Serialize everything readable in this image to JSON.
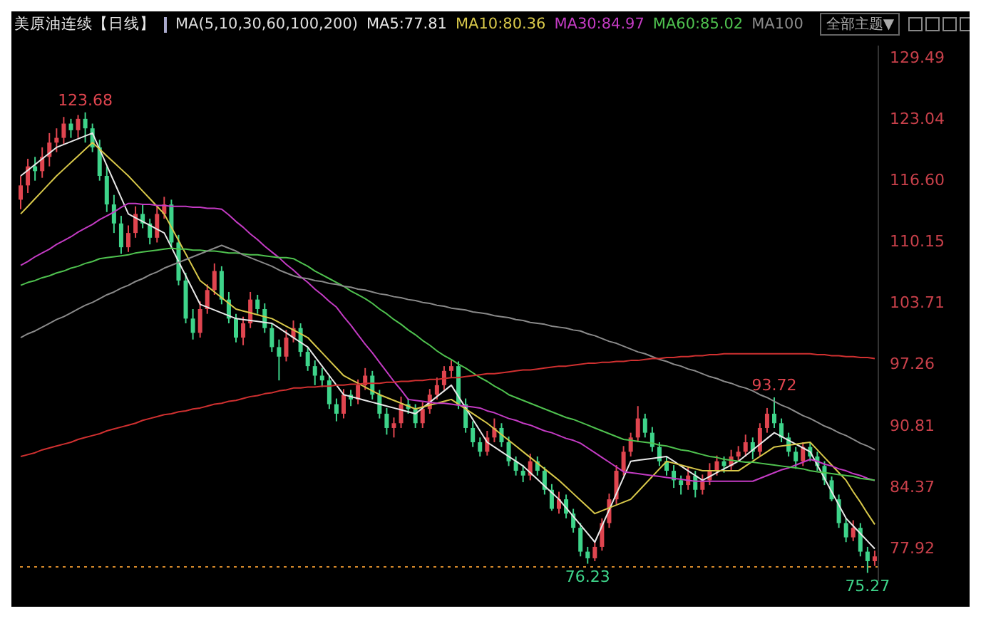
{
  "chart_data": {
    "type": "candlestick",
    "title": "美原油连续【日线】",
    "categories": [
      null,
      null,
      null,
      null,
      null,
      null,
      null,
      null,
      null,
      null,
      null,
      null,
      null,
      null,
      null,
      null,
      null,
      null,
      null,
      null,
      null,
      null,
      null,
      null,
      null,
      null,
      null,
      null,
      null,
      null,
      null,
      null,
      null,
      null,
      null,
      null,
      null,
      null,
      null,
      null,
      null,
      null,
      null,
      null,
      null,
      null,
      null,
      null,
      null,
      null,
      null,
      null,
      null,
      null,
      null,
      null,
      null,
      null,
      null,
      null,
      null,
      null,
      null,
      null,
      null,
      null,
      null,
      null,
      null,
      null,
      null,
      null,
      null,
      null,
      null,
      null,
      null,
      null,
      null,
      null,
      null,
      null,
      null,
      null,
      null,
      null,
      null,
      null,
      null,
      null,
      null,
      null,
      null,
      null,
      null,
      null,
      null,
      null,
      null,
      null,
      null,
      null,
      null,
      null,
      null,
      null,
      null,
      null,
      null,
      null,
      null,
      null,
      null,
      null,
      null,
      null,
      null,
      null,
      null,
      null
    ],
    "ohlc": [
      [
        114.5,
        117,
        113.5,
        116
      ],
      [
        116,
        118.8,
        115.2,
        118
      ],
      [
        118,
        119,
        116.5,
        117.5
      ],
      [
        117.5,
        120,
        116.8,
        119
      ],
      [
        119,
        121.5,
        118,
        120.5
      ],
      [
        120.5,
        122,
        119.5,
        121
      ],
      [
        121,
        123.2,
        120.3,
        122.5
      ],
      [
        122.5,
        123,
        121,
        121.8
      ],
      [
        121.8,
        123.4,
        121,
        123
      ],
      [
        123,
        123.68,
        120.5,
        122
      ],
      [
        122,
        122.5,
        119.5,
        120
      ],
      [
        120,
        120.8,
        116.5,
        117
      ],
      [
        117,
        118,
        113.2,
        114
      ],
      [
        114,
        115,
        111,
        112
      ],
      [
        112,
        112.8,
        108.8,
        109.5
      ],
      [
        109.5,
        111.8,
        109,
        111
      ],
      [
        111,
        113.8,
        110.5,
        113
      ],
      [
        113,
        114,
        111.5,
        112
      ],
      [
        112,
        112.5,
        109.8,
        110.5
      ],
      [
        110.5,
        113.8,
        110,
        113
      ],
      [
        113,
        114.8,
        112.5,
        114
      ],
      [
        114,
        114.5,
        109.5,
        110
      ],
      [
        110,
        110.8,
        105.5,
        106
      ],
      [
        106,
        106.8,
        101.5,
        102
      ],
      [
        102,
        103,
        99.8,
        100.5
      ],
      [
        100.5,
        103.8,
        100,
        103
      ],
      [
        103,
        105.6,
        102.5,
        105
      ],
      [
        105,
        107.8,
        104.5,
        107
      ],
      [
        107,
        107.5,
        103.5,
        104
      ],
      [
        104,
        104.8,
        101.5,
        102
      ],
      [
        102,
        102.5,
        99.5,
        100
      ],
      [
        100,
        102.2,
        99.2,
        101.5
      ],
      [
        101.5,
        104.8,
        101,
        104
      ],
      [
        104,
        104.5,
        102.5,
        103
      ],
      [
        103,
        103.6,
        100.5,
        101
      ],
      [
        101,
        101.5,
        98.5,
        99
      ],
      [
        99,
        99.8,
        95.5,
        98
      ],
      [
        98,
        100.8,
        97.5,
        100
      ],
      [
        100,
        101.8,
        99.5,
        101
      ],
      [
        101,
        101.5,
        98,
        98.5
      ],
      [
        98.5,
        99,
        96.5,
        97
      ],
      [
        97,
        97.6,
        95,
        96
      ],
      [
        96,
        96.8,
        94.8,
        95.5
      ],
      [
        95.5,
        96,
        92.5,
        93
      ],
      [
        93,
        93.6,
        91.2,
        92
      ],
      [
        92,
        94.6,
        91.5,
        94
      ],
      [
        94,
        94.5,
        92.8,
        93.5
      ],
      [
        93.5,
        95.6,
        93,
        95
      ],
      [
        95,
        96.8,
        94.5,
        96
      ],
      [
        96,
        96.5,
        93.5,
        94
      ],
      [
        94,
        94.5,
        91.5,
        92
      ],
      [
        92,
        92.6,
        89.8,
        90.5
      ],
      [
        90.5,
        91.6,
        89.5,
        91
      ],
      [
        91,
        93.8,
        90.5,
        93
      ],
      [
        93,
        93.6,
        92,
        92.5
      ],
      [
        92.5,
        93,
        90.5,
        91
      ],
      [
        91,
        93.2,
        90.5,
        92.5
      ],
      [
        92.5,
        94.6,
        92,
        94
      ],
      [
        94,
        95.8,
        93.5,
        95
      ],
      [
        95,
        97,
        94.5,
        96.5
      ],
      [
        96.5,
        97.6,
        95.8,
        97
      ],
      [
        97,
        97.5,
        92.5,
        93
      ],
      [
        93,
        93.6,
        90,
        90.5
      ],
      [
        90.5,
        91.2,
        88.5,
        89
      ],
      [
        89,
        89.5,
        87.5,
        88
      ],
      [
        88,
        90.2,
        87.6,
        89.5
      ],
      [
        89.5,
        91.5,
        89,
        90.5
      ],
      [
        90.5,
        91,
        88.5,
        89
      ],
      [
        89,
        89.6,
        86.5,
        87
      ],
      [
        87,
        87.5,
        85.5,
        86
      ],
      [
        86,
        86.6,
        84.8,
        85.5
      ],
      [
        85.5,
        87.8,
        85,
        87
      ],
      [
        87,
        87.5,
        85.5,
        86
      ],
      [
        86,
        86.4,
        83.5,
        84
      ],
      [
        84,
        84.6,
        81.8,
        82
      ],
      [
        82,
        83.8,
        81.5,
        83
      ],
      [
        83,
        83.5,
        81,
        81.5
      ],
      [
        81.5,
        82,
        79.5,
        80
      ],
      [
        80,
        80.5,
        77,
        77.5
      ],
      [
        77.5,
        78,
        76.23,
        76.8
      ],
      [
        76.8,
        78.6,
        76.5,
        78
      ],
      [
        78,
        81,
        77.6,
        80.5
      ],
      [
        80.5,
        83.6,
        80,
        83
      ],
      [
        83,
        86.6,
        82.5,
        86
      ],
      [
        86,
        88.6,
        85.5,
        88
      ],
      [
        88,
        90,
        87.5,
        89.5
      ],
      [
        89.5,
        92.8,
        89,
        91.5
      ],
      [
        91.5,
        92,
        89.5,
        90
      ],
      [
        90,
        90.6,
        88,
        88.5
      ],
      [
        88.5,
        89,
        86.5,
        87
      ],
      [
        87,
        87.5,
        85.5,
        86
      ],
      [
        86,
        86.6,
        84.2,
        85
      ],
      [
        85,
        85.5,
        83.5,
        84.5
      ],
      [
        84.5,
        86.4,
        84,
        85.5
      ],
      [
        85.5,
        86,
        83.2,
        84
      ],
      [
        84,
        85.6,
        83.5,
        85
      ],
      [
        85,
        86.8,
        84.5,
        86
      ],
      [
        86,
        87.6,
        85.5,
        87
      ],
      [
        87,
        87.5,
        85.8,
        86.5
      ],
      [
        86.5,
        88.2,
        86,
        87.5
      ],
      [
        87.5,
        88.6,
        87,
        88
      ],
      [
        88,
        89.8,
        87.5,
        89
      ],
      [
        89,
        89.5,
        87.2,
        88
      ],
      [
        88,
        91,
        87.5,
        90.5
      ],
      [
        90.5,
        92.6,
        90,
        92
      ],
      [
        92,
        93.72,
        90.5,
        91
      ],
      [
        91,
        91.5,
        89,
        89.5
      ],
      [
        89.5,
        90,
        87.5,
        88
      ],
      [
        88,
        88.5,
        86.2,
        87
      ],
      [
        87,
        89,
        86.5,
        88.5
      ],
      [
        88.5,
        89,
        87,
        87.5
      ],
      [
        87.5,
        88,
        86,
        86.5
      ],
      [
        86.5,
        87,
        84.5,
        85
      ],
      [
        85,
        85.4,
        82.8,
        83
      ],
      [
        83,
        83.5,
        80,
        80.5
      ],
      [
        80.5,
        81,
        78.5,
        79
      ],
      [
        79,
        80.8,
        78.6,
        80
      ],
      [
        80,
        80.5,
        77,
        77.5
      ],
      [
        77.5,
        78,
        75.27,
        76.5
      ],
      [
        76.5,
        77.6,
        76,
        77
      ]
    ],
    "series": [
      {
        "type": "line",
        "name": "MA5:77.81",
        "color": "#e8e8e8",
        "values": [
          117,
          117.6,
          118.2,
          118.8,
          119.4,
          120,
          120.3,
          120.6,
          120.9,
          121.2,
          121.5,
          119.8,
          118.1,
          116.4,
          114.7,
          113,
          112.6,
          112.2,
          111.8,
          111.4,
          111,
          109.5,
          108,
          106.5,
          105,
          103.5,
          103.2,
          102.9,
          102.6,
          102.3,
          102,
          101.9,
          101.8,
          101.7,
          101.6,
          101.5,
          101,
          100.5,
          100,
          99.5,
          99,
          98,
          97,
          96,
          95,
          94,
          93.8,
          93.6,
          93.4,
          93.2,
          93,
          92.8,
          92.6,
          92.4,
          92.2,
          92,
          92.6,
          93.2,
          93.8,
          94.4,
          95,
          93.8,
          92.6,
          91.4,
          90.2,
          89,
          88.5,
          88,
          87.5,
          87,
          86.5,
          85.8,
          85.1,
          84.4,
          83.7,
          83,
          82.1,
          81.2,
          80.3,
          79.4,
          78.5,
          80.2,
          81.9,
          83.6,
          85.3,
          87,
          87.1,
          87.2,
          87.3,
          87.4,
          87.5,
          87,
          86.5,
          86,
          85.5,
          85,
          85.4,
          85.8,
          86.2,
          86.6,
          87,
          87.6,
          88.2,
          88.8,
          89.4,
          90,
          89.6,
          89.2,
          88.8,
          88.4,
          88,
          86.6,
          85.2,
          83.8,
          82.4,
          81,
          80.2,
          79.4,
          78.6,
          77.81
        ]
      },
      {
        "type": "line",
        "name": "MA10:80.36",
        "color": "#d8c84a",
        "values": [
          113,
          113.8,
          114.6,
          115.4,
          116.2,
          117,
          117.7,
          118.4,
          119.1,
          119.8,
          120.5,
          119.8,
          119.1,
          118.4,
          117.7,
          117,
          116.2,
          115.4,
          114.6,
          113.8,
          113,
          111.6,
          110.2,
          108.8,
          107.4,
          106,
          105.4,
          104.8,
          104.2,
          103.6,
          103,
          102.8,
          102.6,
          102.4,
          102.2,
          102,
          101.6,
          101.2,
          100.8,
          100.4,
          100,
          99.2,
          98.4,
          97.6,
          96.8,
          96,
          95.6,
          95.2,
          94.8,
          94.4,
          94,
          93.7,
          93.4,
          93.1,
          92.8,
          92.5,
          92.7,
          92.9,
          93.1,
          93.3,
          93.5,
          93,
          92.5,
          92,
          91.5,
          91,
          90.4,
          89.8,
          89.2,
          88.6,
          88,
          87.4,
          86.8,
          86.2,
          85.6,
          85,
          84.3,
          83.6,
          82.9,
          82.2,
          81.5,
          81.8,
          82.1,
          82.4,
          82.7,
          83,
          83.8,
          84.6,
          85.4,
          86.2,
          87,
          86.8,
          86.6,
          86.4,
          86.2,
          86,
          86,
          86,
          86,
          86,
          86,
          86.5,
          87,
          87.5,
          88,
          88.5,
          88.6,
          88.7,
          88.8,
          88.9,
          89,
          88.2,
          87.4,
          86.6,
          85.8,
          85,
          83.8,
          82.7,
          81.5,
          80.36
        ]
      },
      {
        "type": "line",
        "name": "MA30:84.97",
        "color": "#c43bc4",
        "values": [
          107.6,
          108,
          108.5,
          108.9,
          109.3,
          109.8,
          110.2,
          110.6,
          111.1,
          111.5,
          111.9,
          112.4,
          112.8,
          113.2,
          113.7,
          114.1,
          114.1,
          114,
          114,
          113.9,
          113.9,
          113.8,
          113.8,
          113.8,
          113.7,
          113.7,
          113.6,
          113.6,
          113.5,
          112.9,
          112.2,
          111.6,
          110.9,
          110.3,
          109.6,
          109,
          108.4,
          107.7,
          107.1,
          106.4,
          105.8,
          105.1,
          104.5,
          103.8,
          103.2,
          102.2,
          101.3,
          100.3,
          99.3,
          98.4,
          97.4,
          96.4,
          95.4,
          94.5,
          93.5,
          93.4,
          93.3,
          93.2,
          93.1,
          93.1,
          93,
          92.9,
          92.8,
          92.7,
          92.6,
          92.3,
          92.1,
          91.8,
          91.5,
          91.3,
          91,
          90.8,
          90.5,
          90.2,
          90,
          89.7,
          89.4,
          89.2,
          88.9,
          88.4,
          87.9,
          87.4,
          86.9,
          86.4,
          85.9,
          85.8,
          85.7,
          85.6,
          85.5,
          85.4,
          85.3,
          85.2,
          85.1,
          85,
          84.9,
          84.9,
          84.9,
          84.9,
          84.9,
          84.9,
          84.9,
          84.9,
          84.9,
          85.2,
          85.5,
          85.8,
          86.1,
          86.3,
          86.6,
          86.9,
          87.2,
          87,
          86.7,
          86.5,
          86.2,
          86,
          85.7,
          85.5,
          85.2,
          84.97
        ]
      },
      {
        "type": "line",
        "name": "MA60:85.02",
        "color": "#4fc24f",
        "values": [
          105.5,
          105.8,
          106,
          106.3,
          106.5,
          106.8,
          107,
          107.3,
          107.5,
          107.8,
          108,
          108.3,
          108.4,
          108.5,
          108.6,
          108.7,
          108.9,
          109,
          109.1,
          109.2,
          109.3,
          109.4,
          109.3,
          109.3,
          109.2,
          109.2,
          109.1,
          109.1,
          109,
          108.9,
          108.9,
          108.8,
          108.7,
          108.7,
          108.6,
          108.5,
          108.4,
          108.4,
          108.3,
          107.9,
          107.5,
          107,
          106.6,
          106.2,
          105.8,
          105.4,
          104.9,
          104.5,
          104.1,
          103.6,
          103,
          102.5,
          101.9,
          101.4,
          100.8,
          100.3,
          99.7,
          99.2,
          98.6,
          98.1,
          97.7,
          97.2,
          96.8,
          96.3,
          95.8,
          95.4,
          94.9,
          94.5,
          94,
          93.7,
          93.4,
          93.1,
          92.8,
          92.5,
          92.2,
          91.9,
          91.6,
          91.4,
          91.1,
          90.8,
          90.5,
          90.2,
          89.9,
          89.6,
          89.3,
          89.2,
          89.1,
          89,
          88.9,
          88.7,
          88.6,
          88.4,
          88.2,
          88.1,
          87.9,
          87.7,
          87.5,
          87.4,
          87.2,
          87.1,
          87,
          86.9,
          86.9,
          86.8,
          86.7,
          86.6,
          86.5,
          86.4,
          86.3,
          86.2,
          86,
          85.9,
          85.8,
          85.7,
          85.6,
          85.5,
          85.4,
          85.2,
          85.1,
          85.02
        ]
      },
      {
        "type": "line",
        "name": "MA100",
        "color": "#8a8a8a",
        "values": [
          100,
          100.4,
          100.7,
          101.1,
          101.5,
          101.9,
          102.2,
          102.6,
          103,
          103.4,
          103.7,
          104.1,
          104.5,
          104.8,
          105.2,
          105.5,
          105.9,
          106.2,
          106.6,
          106.9,
          107.3,
          107.6,
          107.9,
          108.2,
          108.5,
          108.8,
          109.1,
          109.4,
          109.7,
          109.4,
          109.1,
          108.7,
          108.4,
          108.1,
          107.8,
          107.5,
          107.1,
          106.8,
          106.5,
          106.3,
          106.2,
          106,
          105.9,
          105.7,
          105.6,
          105.4,
          105.3,
          105.1,
          105,
          104.8,
          104.6,
          104.5,
          104.3,
          104.2,
          104,
          103.9,
          103.7,
          103.6,
          103.4,
          103.3,
          103.1,
          103,
          102.9,
          102.7,
          102.6,
          102.5,
          102.3,
          102.2,
          102.1,
          101.9,
          101.8,
          101.6,
          101.5,
          101.4,
          101.2,
          101.1,
          101,
          100.8,
          100.7,
          100.4,
          100.2,
          99.9,
          99.6,
          99.4,
          99.1,
          98.8,
          98.5,
          98.3,
          98,
          97.7,
          97.5,
          97.2,
          97,
          96.7,
          96.5,
          96.2,
          95.9,
          95.7,
          95.4,
          95.2,
          94.9,
          94.7,
          94.4,
          94,
          93.7,
          93.3,
          92.9,
          92.6,
          92.2,
          91.8,
          91.5,
          91.1,
          90.7,
          90.4,
          90,
          89.7,
          89.3,
          88.9,
          88.6,
          88.2
        ]
      },
      {
        "type": "line",
        "color": "#d03030",
        "values": [
          87.5,
          87.7,
          87.9,
          88.2,
          88.4,
          88.6,
          88.8,
          89,
          89.3,
          89.5,
          89.7,
          89.9,
          90.2,
          90.4,
          90.6,
          90.8,
          91,
          91.3,
          91.5,
          91.7,
          91.9,
          92,
          92.2,
          92.3,
          92.5,
          92.6,
          92.8,
          93,
          93.1,
          93.3,
          93.4,
          93.6,
          93.8,
          93.9,
          94.1,
          94.2,
          94.4,
          94.5,
          94.7,
          94.7,
          94.8,
          94.8,
          94.9,
          94.9,
          95,
          95,
          95.1,
          95.1,
          95.2,
          95.2,
          95.2,
          95.3,
          95.3,
          95.4,
          95.4,
          95.5,
          95.5,
          95.6,
          95.6,
          95.7,
          95.8,
          95.8,
          95.9,
          96,
          96.1,
          96.2,
          96.2,
          96.3,
          96.4,
          96.5,
          96.6,
          96.6,
          96.7,
          96.8,
          96.9,
          97,
          97,
          97.1,
          97.2,
          97.3,
          97.3,
          97.4,
          97.4,
          97.5,
          97.5,
          97.6,
          97.6,
          97.7,
          97.8,
          97.8,
          97.9,
          97.9,
          98,
          98,
          98.1,
          98.1,
          98.2,
          98.2,
          98.3,
          98.3,
          98.3,
          98.3,
          98.3,
          98.3,
          98.3,
          98.3,
          98.3,
          98.3,
          98.3,
          98.3,
          98.3,
          98.2,
          98.2,
          98.1,
          98.1,
          98,
          98,
          97.9,
          97.9,
          97.8
        ]
      }
    ],
    "ylim": [
      74.4,
      130.7
    ],
    "yticks": [
      77.92,
      84.37,
      90.81,
      97.26,
      103.71,
      110.15,
      {
        "value": 116.6,
        "label": "116.60"
      },
      123.04,
      129.49
    ],
    "tick_labels": "y",
    "marker": "none",
    "ref_lines": [
      {
        "axis": "y",
        "value": 75.9,
        "color": "#d98b2b",
        "line_style": "dotted"
      }
    ],
    "annotations": [
      "MA(5,10,30,60,100,200)",
      "全部主题▼",
      {
        "text": "123.68",
        "y": 123.68
      },
      {
        "text": "93.72",
        "y": 93.72
      },
      {
        "text": "76.23",
        "y": 76.23
      },
      {
        "text": "75.27",
        "y": 75.27
      }
    ]
  }
}
